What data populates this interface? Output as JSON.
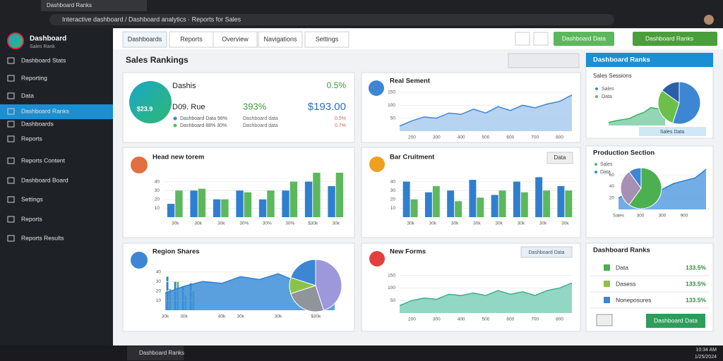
{
  "browser": {
    "tab_title": "Dashboard Ranks",
    "url": "Interactive dashboard / Dashboard analytics · Reports for Sales"
  },
  "sidebar": {
    "brand": "Dashboard",
    "brand_sub": "Sales Rank",
    "items": [
      "Dashboard Stats",
      "Reporting",
      "Data",
      "Dashboard Ranks",
      "Dashboards",
      "Reports",
      "Reports Content",
      "Dashboard Board",
      "Settings",
      "Reports",
      "Reports Results"
    ]
  },
  "nav": {
    "tabs": [
      "Dashboards",
      "Reports",
      "Overview",
      "Navigations",
      "Settings"
    ],
    "buttons": [
      "Dashboard Data",
      "Dashboard Ranks"
    ]
  },
  "header": {
    "title": "Sales Rankings"
  },
  "cards": [
    {
      "title": "Dashis",
      "change": "0.5%",
      "badge": "$23.9",
      "metric": "D09. Rue",
      "percent": "393%",
      "amount": "$193.00",
      "legend": [
        "Dashboard Data 98%",
        "Dashboard 88% 30%"
      ],
      "notes": [
        "Dashboard data",
        "0.5%",
        "Dashboard data",
        "0.7%"
      ]
    },
    {
      "title": "Real Sement",
      "charts": [
        {
          "type": "area",
          "color": "#3d86d4",
          "fill": "#a9cdef",
          "ylim": [
            0,
            180
          ],
          "yticks": [
            50,
            100,
            150
          ],
          "categories": [
            null,
            "200",
            null,
            "300",
            null,
            "400",
            null,
            "500",
            null,
            "600",
            null,
            "700",
            null,
            "800",
            null
          ],
          "values": [
            20,
            40,
            55,
            50,
            70,
            65,
            85,
            70,
            95,
            80,
            100,
            90,
            105,
            115,
            140
          ]
        }
      ]
    },
    {
      "title": "Head new torem",
      "charts": [
        {
          "type": "bar",
          "ylim": [
            0,
            50
          ],
          "yticks": [
            10,
            20,
            30,
            40
          ],
          "categories": [
            "30k",
            "30k",
            "30k",
            "30%",
            "30%",
            "30%",
            "$30k",
            "30k"
          ],
          "series": [
            {
              "name": "Sales",
              "color": "#2f7fd0",
              "values": [
                15,
                30,
                20,
                30,
                20,
                30,
                40,
                35
              ]
            },
            {
              "name": "Data",
              "color": "#5cb85c",
              "values": [
                30,
                32,
                20,
                28,
                30,
                40,
                50,
                50
              ]
            }
          ]
        }
      ]
    },
    {
      "title": "Bar Cruitment",
      "button": "Data",
      "charts": [
        {
          "type": "bar",
          "ylim": [
            0,
            50
          ],
          "yticks": [
            10,
            20,
            30,
            40
          ],
          "categories": [
            "30k",
            "30k",
            "30k",
            "30k",
            "30k",
            "30k",
            "30k",
            "30k"
          ],
          "series": [
            {
              "name": "Sales",
              "color": "#2f7fd0",
              "values": [
                40,
                28,
                30,
                42,
                25,
                40,
                45,
                35
              ]
            },
            {
              "name": "Data",
              "color": "#5cb85c",
              "values": [
                20,
                35,
                18,
                22,
                30,
                28,
                30,
                30
              ]
            }
          ]
        }
      ]
    },
    {
      "title": "Region Shares",
      "charts": [
        {
          "type": "bar",
          "ylim": [
            0,
            50
          ],
          "series": [
            {
              "name": "Sales",
              "color": "#2f7fd0",
              "values": [
                35,
                30,
                25,
                28
              ]
            },
            {
              "name": "Data",
              "color": "#5cb85c",
              "values": [
                22,
                30,
                15,
                20
              ]
            }
          ]
        },
        {
          "type": "area",
          "color": "#2f7fd0",
          "fill": "#3d8fd8",
          "ylim": [
            0,
            50
          ],
          "yticks": [
            10,
            20,
            30,
            40
          ],
          "categories": [
            "30k",
            "30k",
            null,
            "40k",
            "30k",
            null,
            "30k",
            null,
            "$30k",
            null
          ],
          "values": [
            18,
            25,
            30,
            28,
            35,
            32,
            38,
            30,
            25,
            20
          ]
        },
        {
          "type": "pie",
          "values": [
            45,
            25,
            10,
            20
          ],
          "colors": [
            "#9d98dc",
            "#8f959b",
            "#8bc34a",
            "#3d86d4"
          ]
        }
      ]
    },
    {
      "title": "New Forms",
      "button": "Dashboard Data",
      "charts": [
        {
          "type": "area",
          "color": "#3fae8c",
          "fill": "#7fd0b8",
          "ylim": [
            0,
            180
          ],
          "yticks": [
            50,
            100,
            150
          ],
          "categories": [
            null,
            "200",
            null,
            "300",
            null,
            "400",
            null,
            "500",
            null,
            "600",
            null,
            "700",
            null,
            "800",
            null
          ],
          "values": [
            30,
            50,
            60,
            55,
            75,
            70,
            80,
            70,
            90,
            75,
            85,
            70,
            90,
            100,
            120
          ]
        }
      ]
    },
    {
      "title": "Dashboard Ranks",
      "subtitle": "Sales Sessions",
      "legend": [
        "Sales",
        "Data"
      ],
      "button": "Sales Data",
      "charts": [
        {
          "type": "area",
          "color": "#3fae5c",
          "fill": "#7fcfa8",
          "ylim": [
            0,
            45
          ],
          "values": [
            5,
            8,
            10,
            12,
            18,
            22,
            30,
            28,
            40
          ]
        },
        {
          "type": "pie",
          "values": [
            55,
            30,
            15
          ],
          "colors": [
            "#3d86d4",
            "#6cc04a",
            "#2a5fa8"
          ]
        }
      ]
    },
    {
      "title": "Production Section",
      "legend": [
        "Sales",
        "Data"
      ],
      "charts": [
        {
          "type": "area",
          "color": "#2f7fd0",
          "fill": "#5b9fe0",
          "ylim": [
            0,
            80
          ],
          "yticks": [
            20,
            40,
            60
          ],
          "categories": [
            "Sales",
            null,
            "300",
            null,
            "300",
            null,
            "900",
            null,
            null
          ],
          "values": [
            20,
            30,
            25,
            40,
            35,
            45,
            50,
            55,
            70
          ]
        },
        {
          "type": "pie",
          "values": [
            60,
            30,
            10
          ],
          "colors": [
            "#4caf50",
            "#a88fb4",
            "#3d86d4"
          ]
        }
      ]
    },
    {
      "title": "Dashboard Ranks",
      "rows": [
        {
          "label": "Data",
          "value": "133.5%"
        },
        {
          "label": "Dasess",
          "value": "133.5%"
        },
        {
          "label": "Noneposures",
          "value": "133.5%"
        }
      ],
      "button": "Dashboard Data"
    }
  ],
  "taskbar": {
    "window": "Dashboard Ranks",
    "time": "10:34 AM",
    "date": "1/25/2024"
  }
}
